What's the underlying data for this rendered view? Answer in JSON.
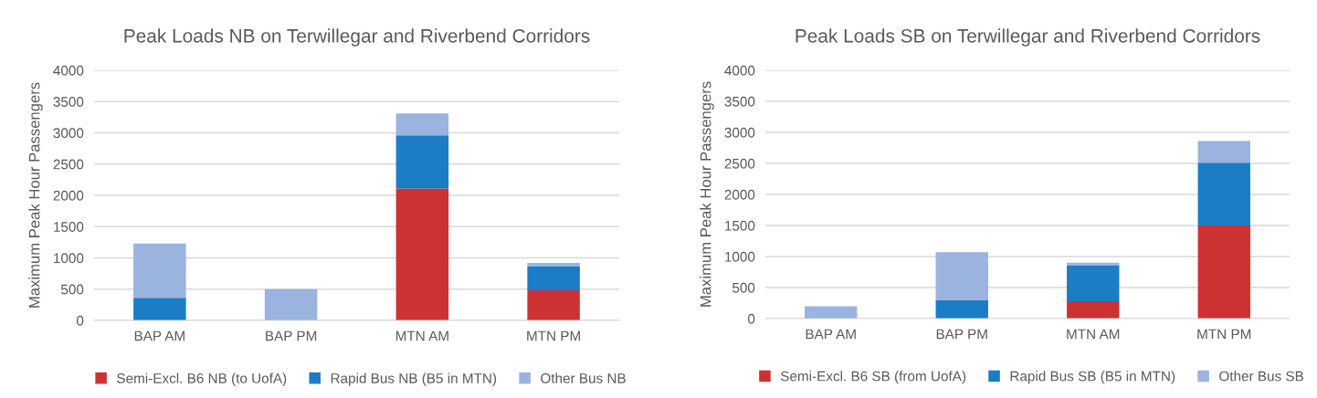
{
  "chart_data": [
    {
      "type": "bar",
      "title": "Peak Loads NB on Terwillegar and Riverbend Corridors",
      "ylabel": "Maximum Peak Hour Passengers",
      "categories": [
        "BAP AM",
        "BAP PM",
        "MTN AM",
        "MTN PM"
      ],
      "stacked": true,
      "ylim": [
        0,
        4000
      ],
      "yticks": [
        0,
        500,
        1000,
        1500,
        2000,
        2500,
        3000,
        3500,
        4000
      ],
      "grid": "y",
      "legend": "bottom",
      "series": [
        {
          "name": "Semi-Excl. B6 NB (to UofA)",
          "color": "#cd3232",
          "values": [
            0,
            0,
            2110,
            480
          ]
        },
        {
          "name": "Rapid Bus NB (B5 in MTN)",
          "color": "#1a7dc6",
          "values": [
            360,
            0,
            850,
            390
          ]
        },
        {
          "name": "Other Bus NB",
          "color": "#9ab3df",
          "values": [
            870,
            500,
            350,
            50
          ]
        }
      ]
    },
    {
      "type": "bar",
      "title": "Peak Loads SB on Terwillegar and Riverbend Corridors",
      "ylabel": "Maximum Peak Hour Passengers",
      "categories": [
        "BAP AM",
        "BAP PM",
        "MTN AM",
        "MTN PM"
      ],
      "stacked": true,
      "ylim": [
        0,
        4000
      ],
      "yticks": [
        0,
        500,
        1000,
        1500,
        2000,
        2500,
        3000,
        3500,
        4000
      ],
      "grid": "y",
      "legend": "bottom",
      "series": [
        {
          "name": "Semi-Excl. B6 SB (from UofA)",
          "color": "#cd3232",
          "values": [
            0,
            0,
            280,
            1500
          ]
        },
        {
          "name": "Rapid Bus SB (B5 in MTN)",
          "color": "#1a7dc6",
          "values": [
            0,
            300,
            580,
            1010
          ]
        },
        {
          "name": "Other Bus SB",
          "color": "#9ab3df",
          "values": [
            200,
            770,
            40,
            350
          ]
        }
      ]
    }
  ]
}
